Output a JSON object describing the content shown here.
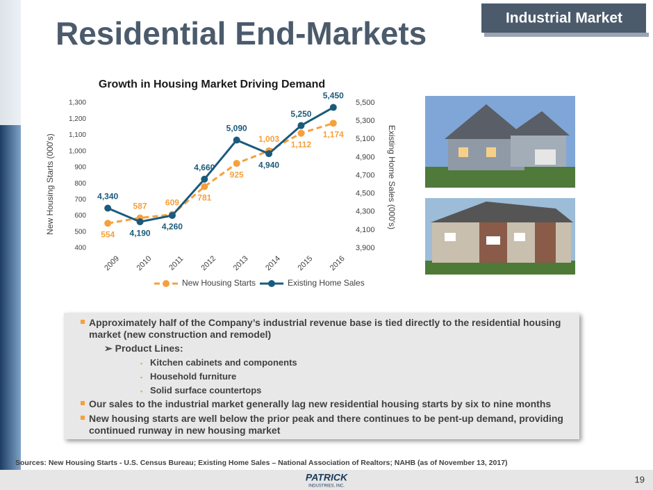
{
  "header": {
    "title": "Residential End-Markets",
    "badge": "Industrial Market"
  },
  "chart_data": {
    "type": "line",
    "title": "Growth in Housing Market Driving Demand",
    "categories": [
      "2009",
      "2010",
      "2011",
      "2012",
      "2013",
      "2014",
      "2015",
      "2016"
    ],
    "series": [
      {
        "name": "New Housing Starts",
        "color": "#f5a03c",
        "dashed": true,
        "axis": "y",
        "values": [
          554,
          587,
          609,
          781,
          925,
          1003,
          1112,
          1174
        ],
        "value_labels": [
          "554",
          "587",
          "609",
          "781",
          "925",
          "1,003",
          "1,112",
          "1,174"
        ]
      },
      {
        "name": "Existing Home Sales",
        "color": "#1b5a7c",
        "dashed": false,
        "axis": "y2",
        "values": [
          4340,
          4190,
          4260,
          4660,
          5090,
          4940,
          5250,
          5450
        ],
        "value_labels": [
          "4,340",
          "4,190",
          "4,260",
          "4,660",
          "5,090",
          "4,940",
          "5,250",
          "5,450"
        ]
      }
    ],
    "ylabel": "New Housing Starts (000's)",
    "y2label": "Existing Home Sales (000's)",
    "ylim": [
      400,
      1300
    ],
    "yticks": [
      400,
      500,
      600,
      700,
      800,
      900,
      {
        "value": 1000,
        "label": "1,000"
      },
      {
        "value": 1100,
        "label": "1,100"
      },
      {
        "value": 1200,
        "label": "1,200"
      },
      {
        "value": 1300,
        "label": "1,300"
      }
    ],
    "y2lim": [
      3900,
      5500
    ],
    "y2ticks": [
      {
        "value": 3900,
        "label": "3,900"
      },
      {
        "value": 4100,
        "label": "4,100"
      },
      {
        "value": 4300,
        "label": "4,300"
      },
      {
        "value": 4500,
        "label": "4,500"
      },
      {
        "value": 4700,
        "label": "4,700"
      },
      {
        "value": 4900,
        "label": "4,900"
      },
      {
        "value": 5100,
        "label": "5,100"
      },
      {
        "value": 5300,
        "label": "5,300"
      },
      {
        "value": 5500,
        "label": "5,500"
      }
    ],
    "legend": "bottom",
    "grid": false
  },
  "bullets": [
    {
      "text": "Approximately half of the Company’s industrial revenue base is tied directly to the residential housing market (new construction and remodel)",
      "heading": "Product Lines:",
      "items": [
        "Kitchen cabinets and components",
        "Household furniture",
        "Solid surface countertops"
      ]
    },
    {
      "text": "Our sales to the industrial market generally lag new residential housing starts by six to nine months"
    },
    {
      "text": "New housing starts are well below the prior peak and there continues to be pent-up demand, providing continued runway in new housing market"
    }
  ],
  "footer": {
    "source": "Sources: New Housing Starts - U.S. Census Bureau; Existing Home Sales – National Association of Realtors; NAHB (as of  November 13, 2017)",
    "logo": "PATRICK",
    "logo_sub": "INDUSTRIES, INC.",
    "page": "19"
  }
}
